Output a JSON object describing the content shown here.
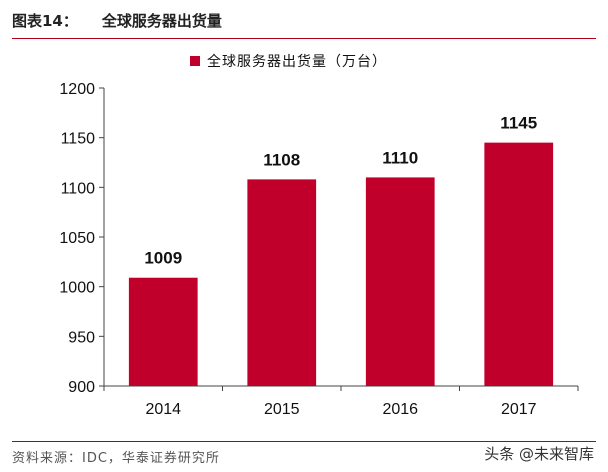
{
  "figure": {
    "label": "图表14：",
    "title": "全球服务器出货量"
  },
  "legend": {
    "label": "全球服务器出货量（万台）",
    "color": "#c0002b"
  },
  "chart_data": {
    "type": "bar",
    "title": "全球服务器出货量",
    "categories": [
      "2014",
      "2015",
      "2016",
      "2017"
    ],
    "series": [
      {
        "name": "全球服务器出货量（万台）",
        "values": [
          1009,
          1108,
          1110,
          1145
        ],
        "color": "#c0002b"
      }
    ],
    "data_labels": [
      "1009",
      "1108",
      "1110",
      "1145"
    ],
    "ylim": [
      900,
      1200
    ],
    "yticks": [
      900,
      950,
      1000,
      1050,
      1100,
      1150,
      1200
    ],
    "ytick_labels": [
      "900",
      "950",
      "1000",
      "1050",
      "1100",
      "1150",
      "1200"
    ],
    "xlabel": "",
    "ylabel": "",
    "grid": false,
    "legend_position": "top-center"
  },
  "footer": {
    "source": "资料来源：IDC，华泰证券研究所",
    "watermark": "头条 @未来智库"
  }
}
